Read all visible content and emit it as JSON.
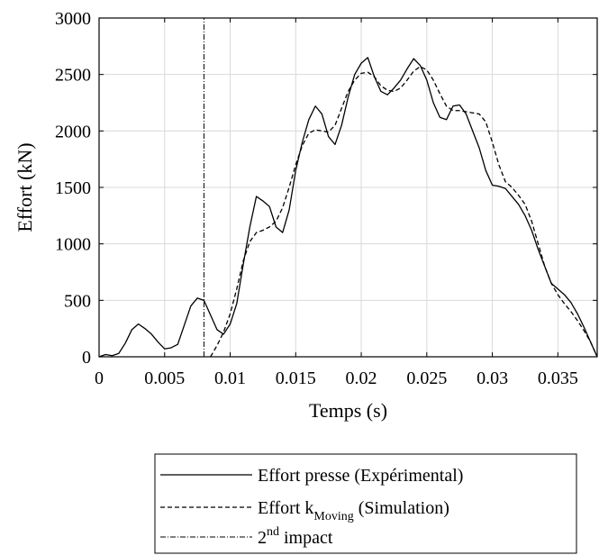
{
  "chart_data": {
    "type": "line",
    "xlabel": "Temps (s)",
    "ylabel": "Effort (kN)",
    "xlim": [
      0,
      0.038
    ],
    "ylim": [
      0,
      3000
    ],
    "xticks": [
      0,
      0.005,
      0.01,
      0.015,
      0.02,
      0.025,
      0.03,
      0.035
    ],
    "xtick_labels": [
      "0",
      "0.005",
      "0.01",
      "0.015",
      "0.02",
      "0.025",
      "0.03",
      "0.035"
    ],
    "yticks": [
      0,
      500,
      1000,
      1500,
      2000,
      2500,
      3000
    ],
    "ytick_labels": [
      "0",
      "500",
      "1000",
      "1500",
      "2000",
      "2500",
      "3000"
    ],
    "grid": true,
    "legend_position": "below",
    "series": [
      {
        "name": "Effort presse (Expérimental)",
        "style": "solid",
        "color": "#000000",
        "x": [
          0,
          0.0005,
          0.001,
          0.0015,
          0.002,
          0.0025,
          0.003,
          0.0035,
          0.004,
          0.0045,
          0.005,
          0.0055,
          0.006,
          0.0065,
          0.007,
          0.0075,
          0.008,
          0.0085,
          0.009,
          0.0095,
          0.01,
          0.0105,
          0.011,
          0.0115,
          0.012,
          0.0125,
          0.013,
          0.0135,
          0.014,
          0.0145,
          0.015,
          0.0155,
          0.016,
          0.0165,
          0.017,
          0.0175,
          0.018,
          0.0185,
          0.019,
          0.0195,
          0.02,
          0.0205,
          0.021,
          0.0215,
          0.022,
          0.0225,
          0.023,
          0.0235,
          0.024,
          0.0245,
          0.025,
          0.0255,
          0.026,
          0.0265,
          0.027,
          0.0275,
          0.028,
          0.0285,
          0.029,
          0.0295,
          0.03,
          0.0305,
          0.031,
          0.0315,
          0.032,
          0.0325,
          0.033,
          0.0335,
          0.034,
          0.0345,
          0.035,
          0.0355,
          0.036,
          0.0365,
          0.037,
          0.0375,
          0.038
        ],
        "y": [
          0,
          20,
          10,
          30,
          120,
          240,
          290,
          250,
          200,
          130,
          70,
          80,
          110,
          280,
          450,
          520,
          500,
          370,
          240,
          200,
          290,
          470,
          820,
          1150,
          1420,
          1380,
          1330,
          1150,
          1100,
          1300,
          1650,
          1900,
          2100,
          2220,
          2150,
          1950,
          1880,
          2050,
          2300,
          2500,
          2600,
          2650,
          2480,
          2350,
          2320,
          2380,
          2450,
          2550,
          2640,
          2580,
          2450,
          2250,
          2120,
          2100,
          2220,
          2230,
          2150,
          2000,
          1850,
          1650,
          1520,
          1510,
          1490,
          1420,
          1350,
          1250,
          1120,
          950,
          800,
          650,
          600,
          550,
          480,
          380,
          260,
          130,
          0
        ]
      },
      {
        "name": "Effort k_Moving (Simulation)",
        "style": "dashed",
        "color": "#000000",
        "x": [
          0.0085,
          0.009,
          0.0095,
          0.01,
          0.0105,
          0.011,
          0.0115,
          0.012,
          0.0125,
          0.013,
          0.0135,
          0.014,
          0.0145,
          0.015,
          0.0155,
          0.016,
          0.0165,
          0.017,
          0.0175,
          0.018,
          0.0185,
          0.019,
          0.0195,
          0.02,
          0.0205,
          0.021,
          0.0215,
          0.022,
          0.0225,
          0.023,
          0.0235,
          0.024,
          0.0245,
          0.025,
          0.0255,
          0.026,
          0.0265,
          0.027,
          0.0275,
          0.028,
          0.0285,
          0.029,
          0.0295,
          0.03,
          0.0305,
          0.031,
          0.0315,
          0.032,
          0.0325,
          0.033,
          0.0335,
          0.034,
          0.0345,
          0.035,
          0.0355,
          0.036,
          0.0365,
          0.037,
          0.0375,
          0.038
        ],
        "y": [
          0,
          100,
          220,
          380,
          600,
          850,
          1020,
          1100,
          1120,
          1150,
          1200,
          1320,
          1500,
          1700,
          1870,
          1980,
          2010,
          2000,
          1990,
          2050,
          2200,
          2350,
          2450,
          2510,
          2520,
          2480,
          2400,
          2360,
          2350,
          2380,
          2450,
          2530,
          2570,
          2540,
          2450,
          2330,
          2220,
          2180,
          2180,
          2170,
          2160,
          2150,
          2080,
          1900,
          1700,
          1550,
          1500,
          1430,
          1350,
          1200,
          1000,
          800,
          650,
          550,
          470,
          400,
          320,
          230,
          130,
          0
        ]
      },
      {
        "name": "2nd impact",
        "style": "dashdot",
        "color": "#000000",
        "type": "vertical-line",
        "x": [
          0.008,
          0.008
        ],
        "y": [
          0,
          3000
        ]
      }
    ],
    "legend": [
      {
        "text": "Effort presse (Expérimental)",
        "style": "solid"
      },
      {
        "text": "Effort k",
        "sub": "Moving",
        "after": " (Simulation)",
        "style": "dashed"
      },
      {
        "text": "2",
        "sup": "nd",
        "after": " impact",
        "style": "dashdot"
      }
    ]
  }
}
